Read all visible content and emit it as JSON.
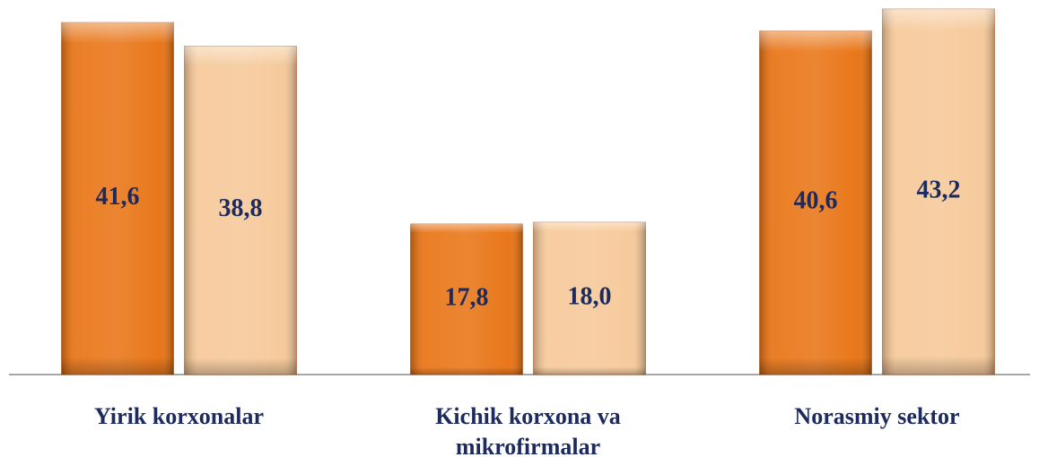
{
  "chart_data": {
    "type": "bar",
    "categories": [
      "Yirik korxonalar",
      "Kichik korxona va mikrofirmalar",
      "Norasmiy sektor"
    ],
    "series": [
      {
        "color": "#e8700e",
        "values": [
          41.6,
          17.8,
          40.6
        ],
        "value_labels": [
          "41,6",
          "17,8",
          "40,6"
        ]
      },
      {
        "color": "#f6c796",
        "values": [
          38.8,
          18.0,
          43.2
        ],
        "value_labels": [
          "38,8",
          "18,0",
          "43,2"
        ]
      }
    ],
    "ylim": [
      0,
      43.2
    ]
  }
}
